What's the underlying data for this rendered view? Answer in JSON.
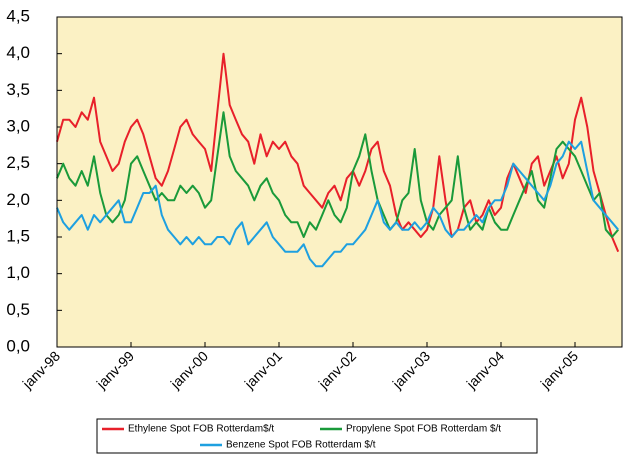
{
  "chart_data": {
    "type": "line",
    "categories": [
      "janv-98",
      null,
      null,
      null,
      null,
      null,
      null,
      null,
      null,
      null,
      null,
      null,
      "janv-99",
      null,
      null,
      null,
      null,
      null,
      null,
      null,
      null,
      null,
      null,
      null,
      "janv-00",
      null,
      null,
      null,
      null,
      null,
      null,
      null,
      null,
      null,
      null,
      null,
      "janv-01",
      null,
      null,
      null,
      null,
      null,
      null,
      null,
      null,
      null,
      null,
      null,
      "janv-02",
      null,
      null,
      null,
      null,
      null,
      null,
      null,
      null,
      null,
      null,
      null,
      "janv-03",
      null,
      null,
      null,
      null,
      null,
      null,
      null,
      null,
      null,
      null,
      null,
      "janv-04",
      null,
      null,
      null,
      null,
      null,
      null,
      null,
      null,
      null,
      null,
      null,
      "janv-05",
      null,
      null,
      null,
      null,
      null,
      null,
      null
    ],
    "series": [
      {
        "name": "Ethylene Spot FOB Rotterdam$/t",
        "color": "#e8202a",
        "values": [
          2.8,
          3.1,
          3.1,
          3.0,
          3.2,
          3.1,
          3.4,
          2.8,
          2.6,
          2.4,
          2.5,
          2.8,
          3.0,
          3.1,
          2.9,
          2.6,
          2.3,
          2.2,
          2.4,
          2.7,
          3.0,
          3.1,
          2.9,
          2.8,
          2.7,
          2.4,
          3.2,
          4.0,
          3.3,
          3.1,
          2.9,
          2.8,
          2.5,
          2.9,
          2.6,
          2.8,
          2.7,
          2.8,
          2.6,
          2.5,
          2.2,
          2.1,
          2.0,
          1.9,
          2.1,
          2.2,
          2.0,
          2.3,
          2.4,
          2.2,
          2.4,
          2.7,
          2.8,
          2.4,
          2.2,
          1.8,
          1.6,
          1.7,
          1.6,
          1.5,
          1.6,
          1.9,
          2.6,
          2.0,
          1.5,
          1.6,
          1.9,
          2.0,
          1.7,
          1.8,
          2.0,
          1.8,
          1.9,
          2.3,
          2.5,
          2.3,
          2.1,
          2.5,
          2.6,
          2.2,
          2.4,
          2.6,
          2.3,
          2.5,
          3.1,
          3.4,
          3.0,
          2.4,
          2.1,
          1.8,
          1.5,
          1.3
        ]
      },
      {
        "name": "Propylene Spot FOB Rotterdam $/t",
        "color": "#1a9a3a",
        "values": [
          2.3,
          2.5,
          2.3,
          2.2,
          2.4,
          2.2,
          2.6,
          2.1,
          1.8,
          1.7,
          1.8,
          2.0,
          2.5,
          2.6,
          2.4,
          2.2,
          2.0,
          2.1,
          2.0,
          2.0,
          2.2,
          2.1,
          2.2,
          2.1,
          1.9,
          2.0,
          2.6,
          3.2,
          2.6,
          2.4,
          2.3,
          2.2,
          2.0,
          2.2,
          2.3,
          2.1,
          2.0,
          1.8,
          1.7,
          1.7,
          1.5,
          1.7,
          1.6,
          1.8,
          2.0,
          1.8,
          1.7,
          1.9,
          2.4,
          2.6,
          2.9,
          2.4,
          2.0,
          1.8,
          1.6,
          1.7,
          2.0,
          2.1,
          2.7,
          2.0,
          1.7,
          1.6,
          1.8,
          1.9,
          2.0,
          2.6,
          1.9,
          1.6,
          1.7,
          1.6,
          1.9,
          1.7,
          1.6,
          1.6,
          1.8,
          2.0,
          2.2,
          2.4,
          2.0,
          1.9,
          2.3,
          2.7,
          2.8,
          2.7,
          2.6,
          2.4,
          2.2,
          2.0,
          2.1,
          1.6,
          1.5,
          1.6
        ]
      },
      {
        "name": "Benzene Spot FOB Rotterdam $/t",
        "color": "#1ea0e0",
        "values": [
          1.9,
          1.7,
          1.6,
          1.7,
          1.8,
          1.6,
          1.8,
          1.7,
          1.8,
          1.9,
          2.0,
          1.7,
          1.7,
          1.9,
          2.1,
          2.1,
          2.2,
          1.8,
          1.6,
          1.5,
          1.4,
          1.5,
          1.4,
          1.5,
          1.4,
          1.4,
          1.5,
          1.5,
          1.4,
          1.6,
          1.7,
          1.4,
          1.5,
          1.6,
          1.7,
          1.5,
          1.4,
          1.3,
          1.3,
          1.3,
          1.4,
          1.2,
          1.1,
          1.1,
          1.2,
          1.3,
          1.3,
          1.4,
          1.4,
          1.5,
          1.6,
          1.8,
          2.0,
          1.7,
          1.6,
          1.7,
          1.6,
          1.6,
          1.7,
          1.6,
          1.7,
          1.9,
          1.8,
          1.6,
          1.5,
          1.6,
          1.6,
          1.7,
          1.8,
          1.7,
          1.9,
          2.0,
          2.0,
          2.2,
          2.5,
          2.4,
          2.3,
          2.2,
          2.1,
          2.0,
          2.2,
          2.5,
          2.6,
          2.8,
          2.7,
          2.8,
          2.4,
          2.0,
          1.9,
          1.8,
          1.7,
          1.6
        ]
      }
    ],
    "ylim": [
      0,
      4.5
    ],
    "yticks": [
      {
        "value": 0,
        "label": "0,0"
      },
      {
        "value": 0.5,
        "label": "0,5"
      },
      {
        "value": 1,
        "label": "1,0"
      },
      {
        "value": 1.5,
        "label": "1,5"
      },
      {
        "value": 2,
        "label": "2,0"
      },
      {
        "value": 2.5,
        "label": "2,5"
      },
      {
        "value": 3,
        "label": "3,0"
      },
      {
        "value": 3.5,
        "label": "3,5"
      },
      {
        "value": 4,
        "label": "4,0"
      },
      {
        "value": 4.5,
        "label": "4,5"
      }
    ],
    "background": "#fbf1c4",
    "legend": "bottom"
  }
}
